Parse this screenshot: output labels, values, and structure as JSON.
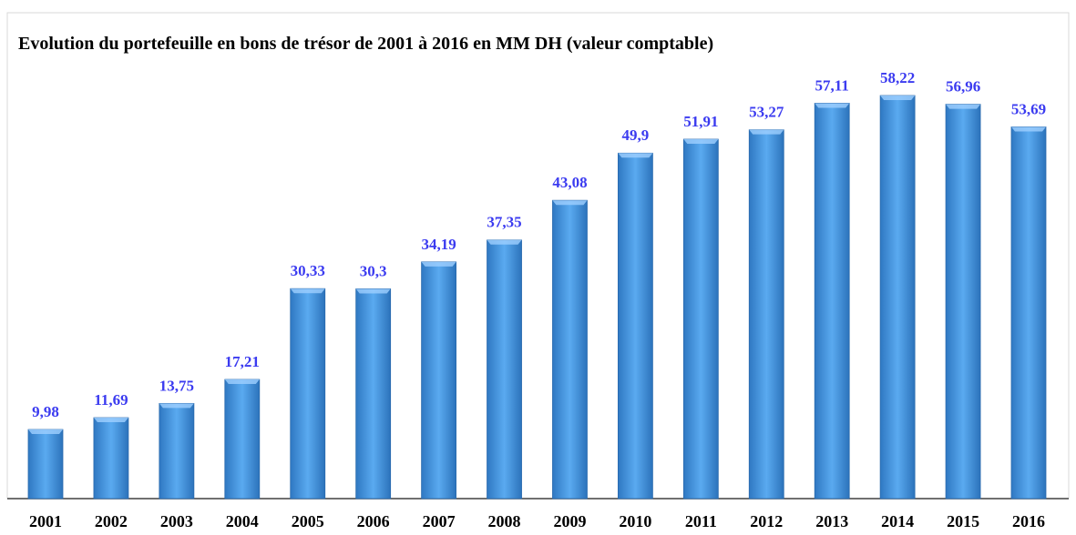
{
  "chart_data": {
    "type": "bar",
    "title": "Evolution du portefeuille en bons de trésor de 2001 à 2016 en MM DH (valeur comptable)",
    "categories": [
      "2001",
      "2002",
      "2003",
      "2004",
      "2005",
      "2006",
      "2007",
      "2008",
      "2009",
      "2010",
      "2011",
      "2012",
      "2013",
      "2014",
      "2015",
      "2016"
    ],
    "values": [
      9.98,
      11.69,
      13.75,
      17.21,
      30.33,
      30.3,
      34.19,
      37.35,
      43.08,
      49.9,
      51.91,
      53.27,
      57.11,
      58.22,
      56.96,
      53.69
    ],
    "value_labels": [
      "9,98",
      "11,69",
      "13,75",
      "17,21",
      "30,33",
      "30,3",
      "34,19",
      "37,35",
      "43,08",
      "49,9",
      "51,91",
      "53,27",
      "57,11",
      "58,22",
      "56,96",
      "53,69"
    ],
    "color": "#3f8fd8"
  }
}
